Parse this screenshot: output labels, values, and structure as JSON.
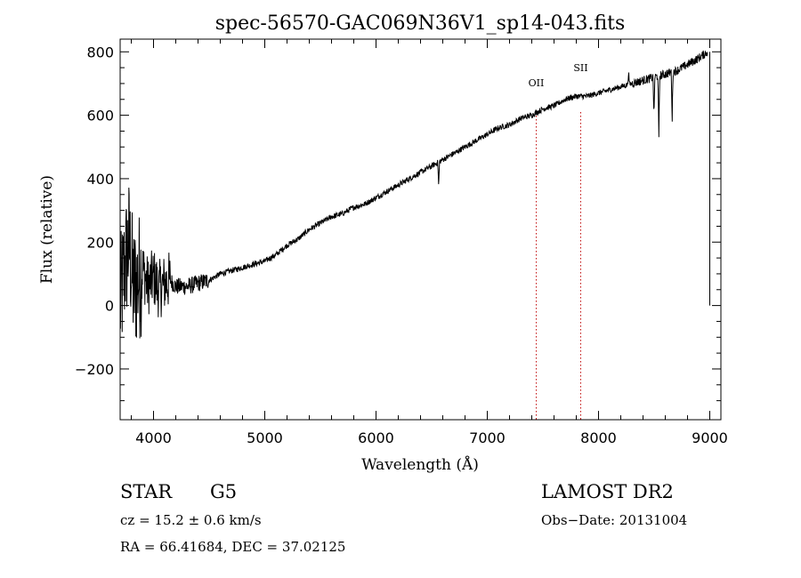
{
  "chart_data": {
    "type": "line",
    "title": "spec-56570-GAC069N36V1_sp14-043.fits",
    "xlabel": "Wavelength (Å)",
    "ylabel": "Flux (relative)",
    "xlim": [
      3700,
      9100
    ],
    "ylim": [
      -360,
      840
    ],
    "x_ticks": [
      4000,
      5000,
      6000,
      7000,
      8000,
      9000
    ],
    "y_ticks": [
      -200,
      0,
      200,
      400,
      600,
      800
    ],
    "x_tick_labels": [
      "4000",
      "5000",
      "6000",
      "7000",
      "8000",
      "9000"
    ],
    "y_tick_labels": [
      "−200",
      "0",
      "200",
      "400",
      "600",
      "800"
    ],
    "grid": false,
    "series": [
      {
        "x": [
          3700,
          3740,
          3780,
          3820,
          3860,
          3900,
          3950,
          4000,
          4050,
          4100,
          4150,
          4200,
          4250,
          4300,
          4400,
          4500,
          4600,
          4700,
          4800,
          4900,
          5000,
          5100,
          5200,
          5300,
          5400,
          5500,
          5600,
          5700,
          5800,
          5900,
          6000,
          6100,
          6200,
          6300,
          6400,
          6500,
          6600,
          6700,
          6800,
          6900,
          7000,
          7100,
          7200,
          7300,
          7400,
          7500,
          7600,
          7700,
          7800,
          7900,
          8000,
          8100,
          8200,
          8300,
          8400,
          8500,
          8600,
          8700,
          8800,
          8900,
          8980
        ],
        "y": [
          0,
          120,
          200,
          50,
          80,
          120,
          60,
          90,
          50,
          70,
          80,
          60,
          60,
          60,
          70,
          80,
          100,
          110,
          120,
          130,
          140,
          160,
          190,
          210,
          240,
          260,
          280,
          290,
          310,
          320,
          340,
          360,
          380,
          400,
          420,
          440,
          460,
          480,
          500,
          520,
          540,
          560,
          570,
          590,
          600,
          620,
          630,
          650,
          660,
          660,
          670,
          680,
          690,
          700,
          710,
          720,
          730,
          740,
          760,
          780,
          800
        ]
      }
    ],
    "absorption_features": [
      {
        "x": 6563,
        "depth": 80
      },
      {
        "x": 8498,
        "depth": 130
      },
      {
        "x": 8542,
        "depth": 200
      },
      {
        "x": 8662,
        "depth": 150
      },
      {
        "x": 8270,
        "depth": -40
      }
    ],
    "line_markers": [
      {
        "label": "OII",
        "x": 7440
      },
      {
        "label": "SII",
        "x": 7840
      }
    ]
  },
  "info": {
    "class": "STAR",
    "subclass": "G5",
    "survey": "LAMOST DR2",
    "redshift_label": "cz = 15.2 ± 0.6 km/s",
    "obs_date_label": "Obs−Date: 20131004",
    "coords_label": "RA =  66.41684, DEC =  37.02125"
  },
  "colors": {
    "line": "#000000",
    "marker_line": "#c21010",
    "background": "#ffffff"
  }
}
